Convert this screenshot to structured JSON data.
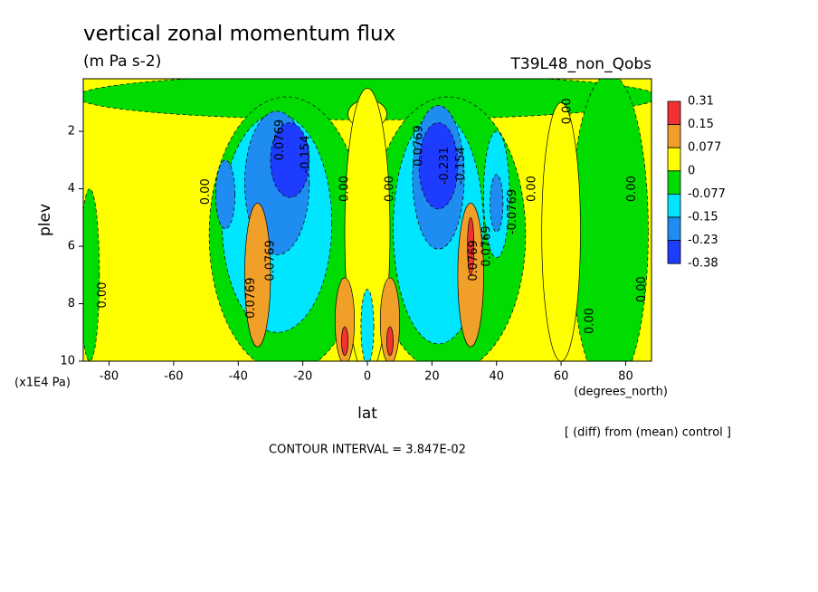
{
  "chart_data": {
    "type": "contour",
    "title": "vertical zonal momentum flux",
    "subtitle": "(m Pa s-2)",
    "run_label": "T39L48_non_Qobs",
    "x_label": "lat",
    "x_unit": "(degrees_north)",
    "y_label": "plev",
    "y_unit": "(x1E4 Pa)",
    "note": "[ (diff) from (mean) control ]",
    "interval_label": "CONTOUR INTERVAL = 3.847E-02",
    "xlim": [
      -88,
      88
    ],
    "xticks": [
      -80,
      -60,
      -40,
      -20,
      0,
      20,
      40,
      60,
      80
    ],
    "ylim": [
      0.17,
      10
    ],
    "yticks": [
      2,
      4,
      6,
      8,
      10
    ],
    "levels": [
      0.31,
      0.15,
      0.077,
      0,
      -0.077,
      -0.15,
      -0.23,
      -0.38
    ],
    "colors": [
      "#f03232",
      "#f0a028",
      "#ffff00",
      "#00dc00",
      "#00e6ff",
      "#1e8cf0",
      "#1e3cff"
    ],
    "regions": [
      {
        "lat": 0,
        "plev": 0.8,
        "dlat": 90,
        "dplev": 0.8,
        "level": -0.03
      },
      {
        "lat": 0,
        "plev": 1.4,
        "dlat": 6,
        "dplev": 0.5,
        "level": 0.03
      },
      {
        "lat": -25,
        "plev": 5.6,
        "dlat": 24,
        "dplev": 4.8,
        "level": -0.03
      },
      {
        "lat": 25,
        "plev": 5.6,
        "dlat": 24,
        "dplev": 4.8,
        "level": -0.03
      },
      {
        "lat": 75,
        "plev": 5.5,
        "dlat": 12,
        "dplev": 5.5,
        "level": -0.03
      },
      {
        "lat": 60,
        "plev": 5.5,
        "dlat": 6,
        "dplev": 4.5,
        "level": 0.03
      },
      {
        "lat": -86,
        "plev": 7,
        "dlat": 3,
        "dplev": 3,
        "level": -0.03
      },
      {
        "lat": 0,
        "plev": 5.5,
        "dlat": 7,
        "dplev": 5,
        "level": 0.03
      },
      {
        "lat": -28,
        "plev": 5.2,
        "dlat": 17,
        "dplev": 3.8,
        "level": -0.12
      },
      {
        "lat": 22,
        "plev": 5.4,
        "dlat": 14,
        "dplev": 4,
        "level": -0.12
      },
      {
        "lat": 40,
        "plev": 4.2,
        "dlat": 4,
        "dplev": 2.2,
        "level": -0.12
      },
      {
        "lat": -28,
        "plev": 3.8,
        "dlat": 10,
        "dplev": 2.5,
        "level": -0.19
      },
      {
        "lat": 22,
        "plev": 3.6,
        "dlat": 8,
        "dplev": 2.5,
        "level": -0.19
      },
      {
        "lat": -44,
        "plev": 4.2,
        "dlat": 3,
        "dplev": 1.2,
        "level": -0.19
      },
      {
        "lat": 40,
        "plev": 4.5,
        "dlat": 2,
        "dplev": 1,
        "level": -0.19
      },
      {
        "lat": -24,
        "plev": 3.0,
        "dlat": 6,
        "dplev": 1.3,
        "level": -0.3
      },
      {
        "lat": 22,
        "plev": 3.2,
        "dlat": 6,
        "dplev": 1.5,
        "level": -0.3
      },
      {
        "lat": -34,
        "plev": 7,
        "dlat": 4,
        "dplev": 2.5,
        "level": 0.1
      },
      {
        "lat": 32,
        "plev": 7,
        "dlat": 4,
        "dplev": 2.5,
        "level": 0.1
      },
      {
        "lat": -7,
        "plev": 8.6,
        "dlat": 3,
        "dplev": 1.5,
        "level": 0.1
      },
      {
        "lat": 7,
        "plev": 8.6,
        "dlat": 3,
        "dplev": 1.5,
        "level": 0.1
      },
      {
        "lat": 0,
        "plev": 8.8,
        "dlat": 2,
        "dplev": 1.3,
        "level": -0.12
      },
      {
        "lat": -7,
        "plev": 9.3,
        "dlat": 1,
        "dplev": 0.5,
        "level": 0.2
      },
      {
        "lat": 7,
        "plev": 9.3,
        "dlat": 1,
        "dplev": 0.5,
        "level": 0.2
      },
      {
        "lat": 32,
        "plev": 6,
        "dlat": 1,
        "dplev": 1,
        "level": 0.2
      }
    ],
    "contour_labels": [
      {
        "text": "0.00",
        "lat": -50,
        "plev": 4.1
      },
      {
        "text": "0.00",
        "lat": -7,
        "plev": 4.0
      },
      {
        "text": "0.00",
        "lat": 7,
        "plev": 4.0
      },
      {
        "text": "0.00",
        "lat": 51,
        "plev": 4.0
      },
      {
        "text": "0.00",
        "lat": 82,
        "plev": 4.0
      },
      {
        "text": "0.00",
        "lat": 85,
        "plev": 7.5
      },
      {
        "text": "0.00",
        "lat": -82,
        "plev": 7.7
      },
      {
        "text": "0.00",
        "lat": 69,
        "plev": 8.6
      },
      {
        "text": "0.00",
        "lat": 62,
        "plev": 1.3
      },
      {
        "text": "0.0769",
        "lat": -27,
        "plev": 2.3
      },
      {
        "text": "-0.154",
        "lat": -19,
        "plev": 2.8
      },
      {
        "text": "0.0769",
        "lat": 16,
        "plev": 2.5
      },
      {
        "text": "-0.231",
        "lat": 24,
        "plev": 3.2
      },
      {
        "text": "-0.154",
        "lat": 29,
        "plev": 3.2
      },
      {
        "text": "-0.0769",
        "lat": 45,
        "plev": 4.8
      },
      {
        "text": "0.0769",
        "lat": 33,
        "plev": 6.5
      },
      {
        "text": "0.0769",
        "lat": -36,
        "plev": 7.8
      },
      {
        "text": "0.0769",
        "lat": 37,
        "plev": 6.0
      },
      {
        "text": "0.0769",
        "lat": -30,
        "plev": 6.5
      }
    ]
  }
}
